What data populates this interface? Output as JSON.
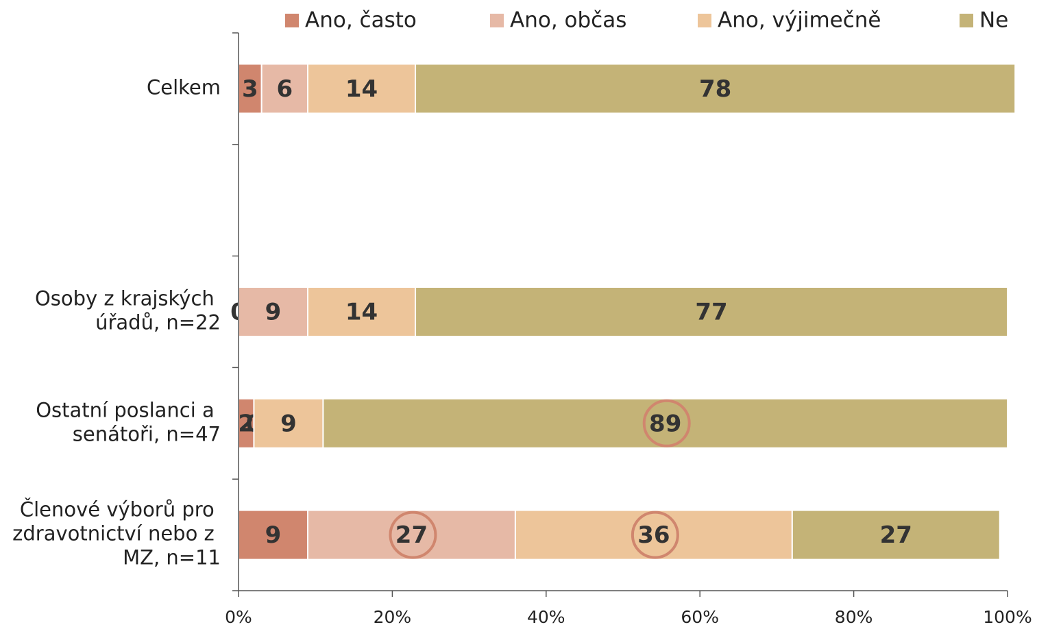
{
  "chart_data": {
    "type": "bar",
    "orientation": "horizontal",
    "stacked": true,
    "categories": [
      "Celkem",
      null,
      "Osoby z krajských úřadů, n=22",
      "Ostatní poslanci a senátoři, n=47",
      "Členové výborů pro zdravotnictví nebo z MZ, n=11"
    ],
    "series": [
      {
        "name": "Ano, často",
        "color": "#d0866e",
        "values": [
          3,
          null,
          0,
          2,
          9
        ]
      },
      {
        "name": "Ano, občas",
        "color": "#e6b9a6",
        "values": [
          6,
          null,
          9,
          0,
          27
        ]
      },
      {
        "name": "Ano, výjimečně",
        "color": "#edc59a",
        "values": [
          14,
          null,
          14,
          9,
          36
        ]
      },
      {
        "name": "Ne",
        "color": "#c4b377",
        "values": [
          78,
          null,
          77,
          89,
          27
        ]
      }
    ],
    "xlim": [
      0,
      100
    ],
    "xticks": [
      {
        "value": 0,
        "label": "0%"
      },
      {
        "value": 20,
        "label": "20%"
      },
      {
        "value": 40,
        "label": "40%"
      },
      {
        "value": 60,
        "label": "60%"
      },
      {
        "value": 80,
        "label": "80%"
      },
      {
        "value": 100,
        "label": "100%"
      }
    ],
    "legend": "top"
  }
}
